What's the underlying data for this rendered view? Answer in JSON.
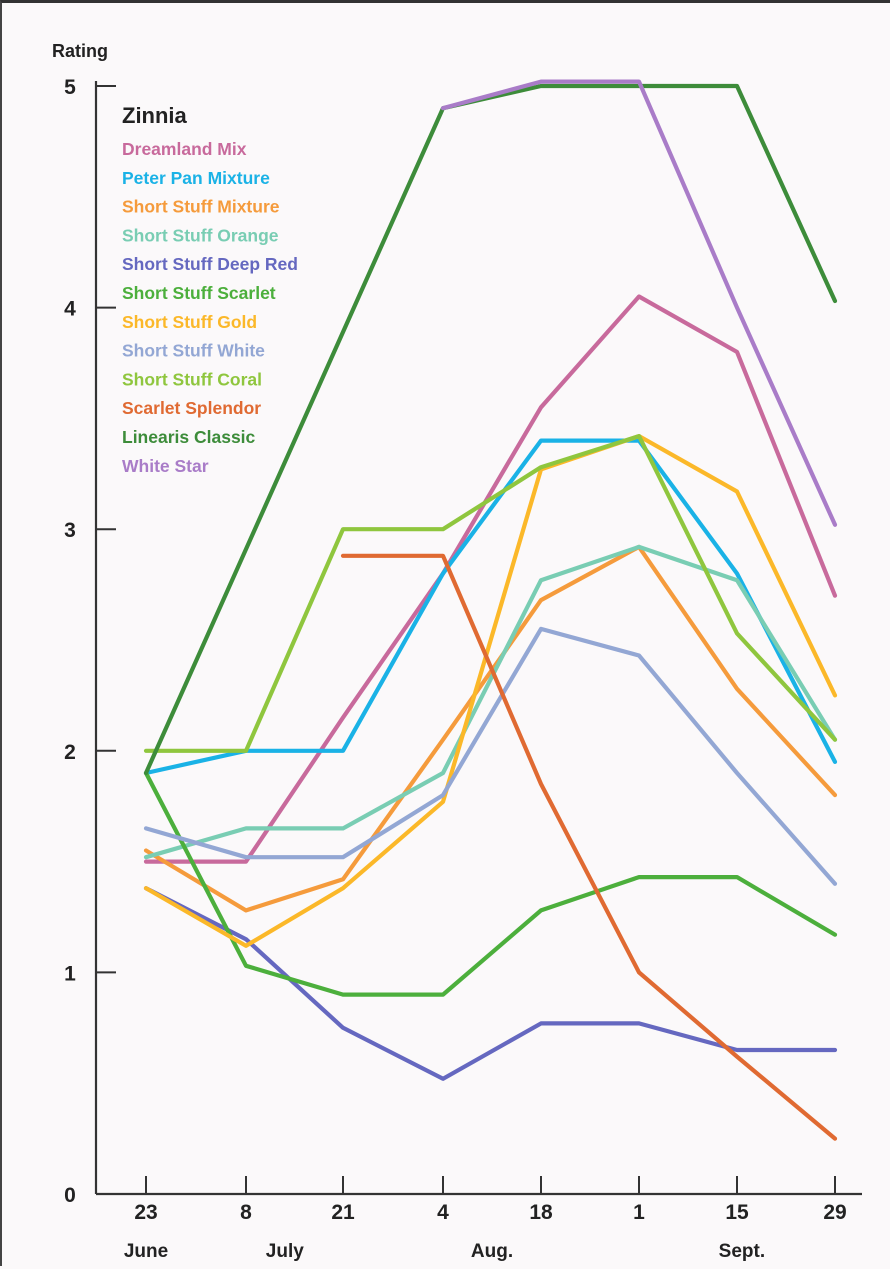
{
  "chart_data": {
    "type": "line",
    "ylabel": "Rating",
    "ylim": [
      0,
      5
    ],
    "yticks": [
      "0",
      "1",
      "2",
      "3",
      "4",
      "5"
    ],
    "x_tick_labels": [
      "23",
      "8",
      "21",
      "4",
      "18",
      "1",
      "15",
      "29"
    ],
    "month_labels": [
      {
        "label": "June",
        "at": 0
      },
      {
        "label": "July",
        "at": 1.4
      },
      {
        "label": "Aug.",
        "at": 3.5
      },
      {
        "label": "Sept.",
        "at": 6.05
      }
    ],
    "legend_title": "Zinnia",
    "legend_placement": "top-left",
    "grid": false,
    "series": [
      {
        "name": "Dreamland Mix",
        "color": "#c86a9c",
        "values": [
          1.5,
          1.5,
          2.15,
          2.8,
          3.55,
          4.05,
          3.8,
          2.7
        ]
      },
      {
        "name": "Peter Pan Mixture",
        "color": "#1ab2e6",
        "values": [
          1.9,
          2.0,
          2.0,
          2.8,
          3.4,
          3.4,
          2.8,
          1.95
        ]
      },
      {
        "name": "Short Stuff Mixture",
        "color": "#f59b3c",
        "values": [
          1.55,
          1.28,
          1.42,
          2.05,
          2.68,
          2.92,
          2.28,
          1.8
        ]
      },
      {
        "name": "Short Stuff Orange",
        "color": "#79cdb3",
        "values": [
          1.52,
          1.65,
          1.65,
          1.9,
          2.77,
          2.92,
          2.77,
          2.05
        ]
      },
      {
        "name": "Short Stuff Deep Red",
        "color": "#6568c0",
        "values": [
          1.38,
          1.15,
          0.75,
          0.52,
          0.77,
          0.77,
          0.65,
          0.65
        ]
      },
      {
        "name": "Short Stuff Scarlet",
        "color": "#4caf3c",
        "values": [
          1.9,
          1.03,
          0.9,
          0.9,
          1.28,
          1.43,
          1.43,
          1.17
        ]
      },
      {
        "name": "Short Stuff Gold",
        "color": "#fbb829",
        "values": [
          1.38,
          1.12,
          1.38,
          1.77,
          3.27,
          3.42,
          3.17,
          2.25
        ]
      },
      {
        "name": "Short Stuff White",
        "color": "#93a7d4",
        "values": [
          1.65,
          1.52,
          1.52,
          1.8,
          2.55,
          2.43,
          1.9,
          1.4
        ]
      },
      {
        "name": "Short Stuff Coral",
        "color": "#8fc63e",
        "values": [
          2.0,
          2.0,
          3.0,
          3.0,
          3.28,
          3.42,
          2.53,
          2.05
        ]
      },
      {
        "name": "Scarlet Splendor",
        "color": "#e06a32",
        "values": [
          null,
          null,
          2.88,
          2.88,
          1.85,
          1.0,
          0.62,
          0.25
        ]
      },
      {
        "name": "Linearis Classic",
        "color": "#3d8c3a",
        "values": [
          1.9,
          null,
          null,
          4.9,
          5.0,
          5.0,
          5.0,
          4.03
        ]
      },
      {
        "name": "White Star",
        "color": "#a97cc8",
        "values": [
          null,
          null,
          null,
          4.9,
          5.02,
          5.02,
          4.0,
          3.02
        ]
      }
    ]
  }
}
